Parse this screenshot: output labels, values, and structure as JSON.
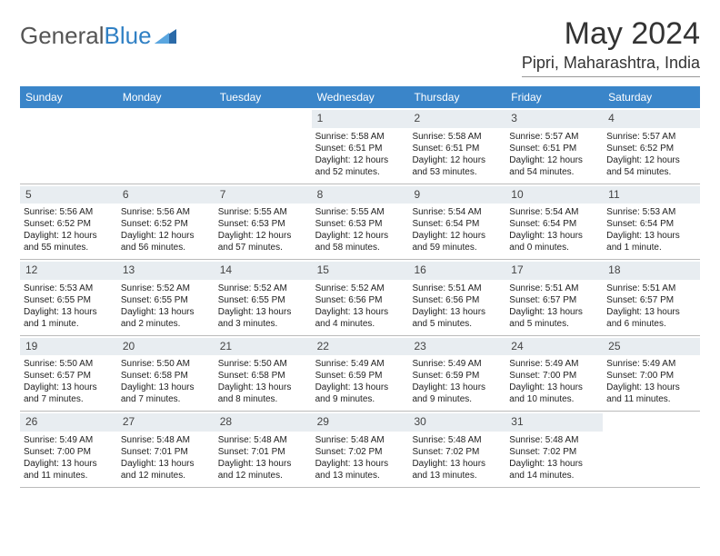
{
  "logo": {
    "part1": "General",
    "part2": "Blue"
  },
  "title": "May 2024",
  "location": "Pipri, Maharashtra, India",
  "colors": {
    "header_bg": "#3a85c9",
    "header_fg": "#ffffff",
    "daynum_bg": "#e8edf1",
    "text": "#222222",
    "logo_gray": "#555555",
    "logo_blue": "#3080c4",
    "border": "#bbbbbb",
    "page_bg": "#ffffff"
  },
  "fonts": {
    "base": 10,
    "daynum": 12,
    "dayhead": 12,
    "title": 34,
    "loc": 18,
    "logo": 26
  },
  "dayNames": [
    "Sunday",
    "Monday",
    "Tuesday",
    "Wednesday",
    "Thursday",
    "Friday",
    "Saturday"
  ],
  "weeks": [
    [
      null,
      null,
      null,
      {
        "n": "1",
        "sr": "5:58 AM",
        "ss": "6:51 PM",
        "dl": "12 hours and 52 minutes."
      },
      {
        "n": "2",
        "sr": "5:58 AM",
        "ss": "6:51 PM",
        "dl": "12 hours and 53 minutes."
      },
      {
        "n": "3",
        "sr": "5:57 AM",
        "ss": "6:51 PM",
        "dl": "12 hours and 54 minutes."
      },
      {
        "n": "4",
        "sr": "5:57 AM",
        "ss": "6:52 PM",
        "dl": "12 hours and 54 minutes."
      }
    ],
    [
      {
        "n": "5",
        "sr": "5:56 AM",
        "ss": "6:52 PM",
        "dl": "12 hours and 55 minutes."
      },
      {
        "n": "6",
        "sr": "5:56 AM",
        "ss": "6:52 PM",
        "dl": "12 hours and 56 minutes."
      },
      {
        "n": "7",
        "sr": "5:55 AM",
        "ss": "6:53 PM",
        "dl": "12 hours and 57 minutes."
      },
      {
        "n": "8",
        "sr": "5:55 AM",
        "ss": "6:53 PM",
        "dl": "12 hours and 58 minutes."
      },
      {
        "n": "9",
        "sr": "5:54 AM",
        "ss": "6:54 PM",
        "dl": "12 hours and 59 minutes."
      },
      {
        "n": "10",
        "sr": "5:54 AM",
        "ss": "6:54 PM",
        "dl": "13 hours and 0 minutes."
      },
      {
        "n": "11",
        "sr": "5:53 AM",
        "ss": "6:54 PM",
        "dl": "13 hours and 1 minute."
      }
    ],
    [
      {
        "n": "12",
        "sr": "5:53 AM",
        "ss": "6:55 PM",
        "dl": "13 hours and 1 minute."
      },
      {
        "n": "13",
        "sr": "5:52 AM",
        "ss": "6:55 PM",
        "dl": "13 hours and 2 minutes."
      },
      {
        "n": "14",
        "sr": "5:52 AM",
        "ss": "6:55 PM",
        "dl": "13 hours and 3 minutes."
      },
      {
        "n": "15",
        "sr": "5:52 AM",
        "ss": "6:56 PM",
        "dl": "13 hours and 4 minutes."
      },
      {
        "n": "16",
        "sr": "5:51 AM",
        "ss": "6:56 PM",
        "dl": "13 hours and 5 minutes."
      },
      {
        "n": "17",
        "sr": "5:51 AM",
        "ss": "6:57 PM",
        "dl": "13 hours and 5 minutes."
      },
      {
        "n": "18",
        "sr": "5:51 AM",
        "ss": "6:57 PM",
        "dl": "13 hours and 6 minutes."
      }
    ],
    [
      {
        "n": "19",
        "sr": "5:50 AM",
        "ss": "6:57 PM",
        "dl": "13 hours and 7 minutes."
      },
      {
        "n": "20",
        "sr": "5:50 AM",
        "ss": "6:58 PM",
        "dl": "13 hours and 7 minutes."
      },
      {
        "n": "21",
        "sr": "5:50 AM",
        "ss": "6:58 PM",
        "dl": "13 hours and 8 minutes."
      },
      {
        "n": "22",
        "sr": "5:49 AM",
        "ss": "6:59 PM",
        "dl": "13 hours and 9 minutes."
      },
      {
        "n": "23",
        "sr": "5:49 AM",
        "ss": "6:59 PM",
        "dl": "13 hours and 9 minutes."
      },
      {
        "n": "24",
        "sr": "5:49 AM",
        "ss": "7:00 PM",
        "dl": "13 hours and 10 minutes."
      },
      {
        "n": "25",
        "sr": "5:49 AM",
        "ss": "7:00 PM",
        "dl": "13 hours and 11 minutes."
      }
    ],
    [
      {
        "n": "26",
        "sr": "5:49 AM",
        "ss": "7:00 PM",
        "dl": "13 hours and 11 minutes."
      },
      {
        "n": "27",
        "sr": "5:48 AM",
        "ss": "7:01 PM",
        "dl": "13 hours and 12 minutes."
      },
      {
        "n": "28",
        "sr": "5:48 AM",
        "ss": "7:01 PM",
        "dl": "13 hours and 12 minutes."
      },
      {
        "n": "29",
        "sr": "5:48 AM",
        "ss": "7:02 PM",
        "dl": "13 hours and 13 minutes."
      },
      {
        "n": "30",
        "sr": "5:48 AM",
        "ss": "7:02 PM",
        "dl": "13 hours and 13 minutes."
      },
      {
        "n": "31",
        "sr": "5:48 AM",
        "ss": "7:02 PM",
        "dl": "13 hours and 14 minutes."
      },
      null
    ]
  ],
  "labels": {
    "sunrise": "Sunrise:",
    "sunset": "Sunset:",
    "daylight": "Daylight:"
  }
}
